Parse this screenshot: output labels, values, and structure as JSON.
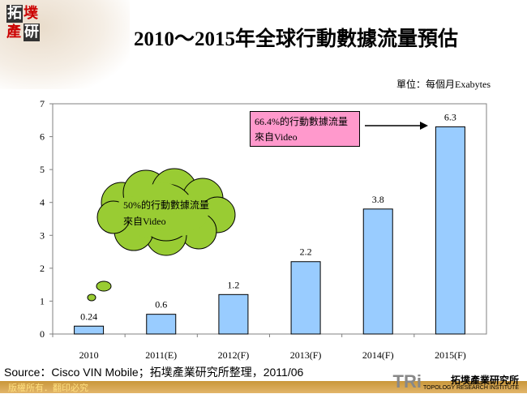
{
  "logo": {
    "text": "拓墣產研"
  },
  "title": "2010～2015年全球行動數據流量預估",
  "unit": "單位：每個月Exabytes",
  "chart_data": {
    "type": "bar",
    "title": "2010～2015年全球行動數據流量預估",
    "ylabel": "單位：每個月Exabytes",
    "categories": [
      "2010",
      "2011(E)",
      "2012(F)",
      "2013(F)",
      "2014(F)",
      "2015(F)"
    ],
    "values": [
      0.24,
      0.6,
      1.2,
      2.2,
      3.8,
      6.3
    ],
    "ylim": [
      0,
      7
    ],
    "yticks": [
      0,
      1,
      2,
      3,
      4,
      5,
      6,
      7
    ],
    "grid": false,
    "bar_color": "#99ccff",
    "annotations": [
      {
        "text": "50%的行動數據流量來自Video",
        "style": "cloud",
        "color": "#99cc33"
      },
      {
        "text": "66.4%的行動數據流量來自Video",
        "style": "box",
        "color": "#ff99cc"
      }
    ]
  },
  "source": "Source：Cisco VIN Mobile；拓墣產業研究所整理，2011/06",
  "footer": {
    "copyright": "版權所有．翻印必究",
    "brand_short": "TRi",
    "brand_cn": "拓墣產業研究所",
    "brand_en": "TOPOLOGY RESEARCH INSTITUTE"
  }
}
